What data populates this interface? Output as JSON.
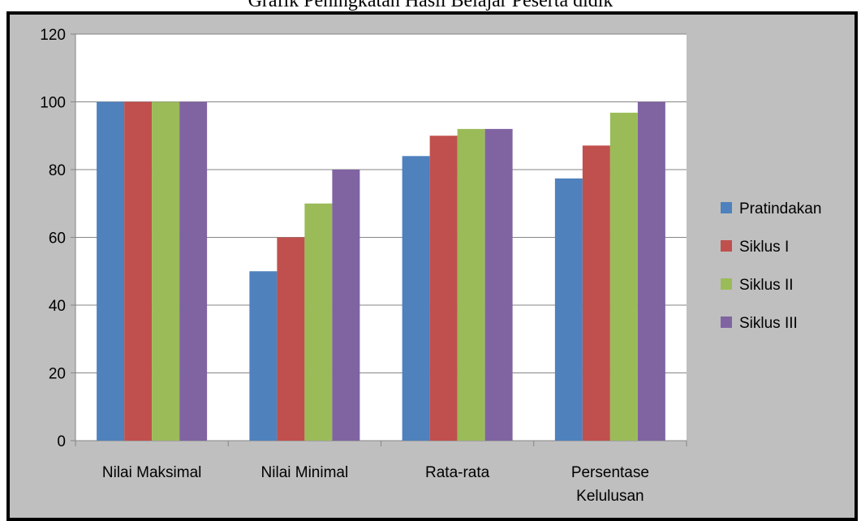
{
  "chart_data": {
    "type": "bar",
    "title": "Grafik Peningkatan Hasil Belajar Peserta didik",
    "categories": [
      [
        "Nilai Maksimal"
      ],
      [
        "Nilai Minimal"
      ],
      [
        "Rata-rata"
      ],
      [
        "Persentase",
        "Kelulusan"
      ]
    ],
    "series": [
      {
        "name": "Pratindakan",
        "color": "#4f81bd",
        "values": [
          100,
          50,
          84,
          77.4
        ]
      },
      {
        "name": "Siklus I",
        "color": "#c0504d",
        "values": [
          100,
          60,
          90,
          87.1
        ]
      },
      {
        "name": "Siklus II",
        "color": "#9bbb59",
        "values": [
          100,
          70,
          92,
          96.8
        ]
      },
      {
        "name": "Siklus III",
        "color": "#8064a2",
        "values": [
          100,
          80,
          92,
          100
        ]
      }
    ],
    "ylim": [
      0,
      120
    ],
    "yticks": [
      "0",
      "20",
      "40",
      "60",
      "80",
      "100",
      "120"
    ],
    "grid": true,
    "legend_position": "right",
    "xlabel": "",
    "ylabel": ""
  }
}
